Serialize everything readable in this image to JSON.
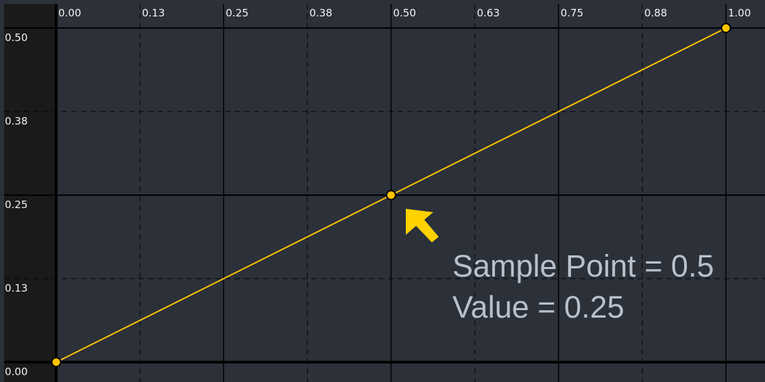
{
  "chart_data": {
    "type": "line",
    "x_ticks": [
      "0.00",
      "0.13",
      "0.25",
      "0.38",
      "0.50",
      "0.63",
      "0.75",
      "0.88",
      "1.00"
    ],
    "y_ticks": [
      "0.00",
      "0.13",
      "0.25",
      "0.38",
      "0.50"
    ],
    "xlim": [
      0,
      1
    ],
    "ylim": [
      0,
      0.5
    ],
    "grid": true,
    "series": [
      {
        "x": [
          0,
          0.5,
          1.0
        ],
        "y": [
          0,
          0.25,
          0.5
        ],
        "color": "#ffc400"
      }
    ],
    "annotation": {
      "line1": "Sample Point = 0.5",
      "line2": "Value = 0.25",
      "arrow_color": "#ffd200",
      "points_to": {
        "x": 0.5,
        "y": 0.25
      }
    }
  },
  "colors": {
    "background": "#2b3039",
    "gutter": "#1b1a19",
    "grid": "#000000",
    "text": "#f2f2f2",
    "annotation_text": "#b7c1cd"
  }
}
